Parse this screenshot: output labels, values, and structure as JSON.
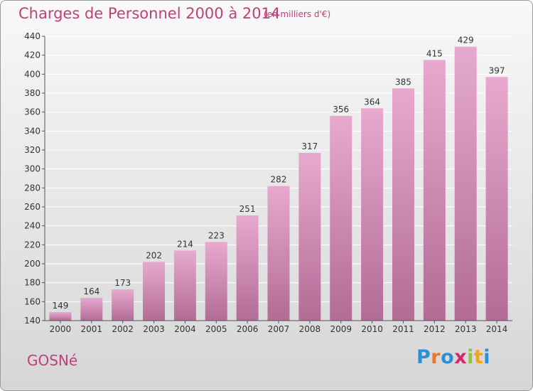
{
  "header": {
    "title": "Charges de Personnel 2000 à 2014",
    "subtitle": "(en milliers d'€)"
  },
  "footer": {
    "place": "GOSNé",
    "logo_letters": [
      "P",
      "r",
      "o",
      "x",
      "i",
      "t",
      "i"
    ],
    "logo_colors": [
      "#2e8fd6",
      "#e6782c",
      "#2e8fd6",
      "#d6286e",
      "#8cc63f",
      "#f2a21b",
      "#2e8fd6"
    ]
  },
  "colors": {
    "bar_top": "#e7a9cf",
    "bar_bottom": "#b26c96",
    "axis": "#555555",
    "grid": "#ffffff",
    "text": "#333333"
  },
  "chart_data": {
    "type": "bar",
    "title": "Charges de Personnel 2000 à 2014",
    "subtitle": "(en milliers d'€)",
    "categories": [
      "2000",
      "2001",
      "2002",
      "2003",
      "2004",
      "2005",
      "2006",
      "2007",
      "2008",
      "2009",
      "2010",
      "2011",
      "2012",
      "2013",
      "2014"
    ],
    "values": [
      149,
      164,
      173,
      202,
      214,
      223,
      251,
      282,
      317,
      356,
      364,
      385,
      415,
      429,
      397
    ],
    "ylim": [
      140,
      440
    ],
    "yticks": [
      140,
      160,
      180,
      200,
      220,
      240,
      260,
      280,
      300,
      320,
      340,
      360,
      380,
      400,
      420,
      440
    ],
    "grid": true,
    "xlabel": "",
    "ylabel": ""
  }
}
